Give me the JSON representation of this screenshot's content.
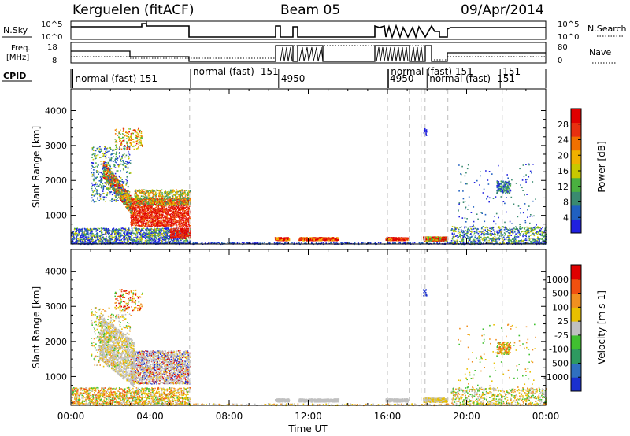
{
  "header": {
    "station": "Kerguelen (fitACF)",
    "beam": "Beam 05",
    "date": "09/Apr/2014"
  },
  "panels": {
    "nsky": {
      "label": "N.Sky",
      "left_ticks": [
        "10^5",
        "10^0"
      ],
      "right_label": "N.Search",
      "right_ticks": [
        "10^5",
        "10^0"
      ]
    },
    "freq": {
      "label_line1": "Freq.",
      "label_line2": "[MHz]",
      "left_ticks": [
        "18",
        "8"
      ],
      "right_label": "Nave",
      "right_ticks": [
        "80",
        "0"
      ]
    },
    "cpid": {
      "label": "CPID",
      "segments": [
        {
          "text": "normal (fast) 151",
          "hour": 0.1
        },
        {
          "text": "normal (fast) -151",
          "hour": 6.05
        },
        {
          "text": "4950",
          "hour": 10.5
        },
        {
          "text": "4950",
          "hour": 16.0
        },
        {
          "text": "normal (fast) 151",
          "hour": 16.05
        },
        {
          "text": "normal (fast) -151",
          "hour": 18.0
        },
        {
          "text": "151",
          "hour": 21.7
        }
      ]
    }
  },
  "chart_data": [
    {
      "type": "heatmap",
      "title": "Power",
      "xlabel": "Time UT",
      "ylabel": "Slant Range [km]",
      "x_ticks": [
        "00:00",
        "04:00",
        "08:00",
        "12:00",
        "16:00",
        "20:00",
        "00:00"
      ],
      "x_range_hours": [
        0,
        24
      ],
      "y_ticks": [
        "1000",
        "2000",
        "3000",
        "4000"
      ],
      "y_range_km": [
        180,
        4620
      ],
      "colorbar": {
        "label": "Power [dB]",
        "ticks": [
          "4",
          "8",
          "12",
          "16",
          "20",
          "24",
          "28"
        ],
        "colors": [
          "#2020e0",
          "#2060c0",
          "#3a8a70",
          "#4ab040",
          "#c8c800",
          "#f0b000",
          "#f07000",
          "#e83010",
          "#e00000"
        ]
      },
      "vertical_dashed_hours": [
        6.0,
        16.0,
        17.1,
        17.7,
        17.9,
        19.05,
        21.8
      ]
    },
    {
      "type": "heatmap",
      "title": "Velocity",
      "xlabel": "Time UT",
      "ylabel": "Slant Range [km]",
      "x_ticks": [
        "00:00",
        "04:00",
        "08:00",
        "12:00",
        "16:00",
        "20:00",
        "00:00"
      ],
      "x_range_hours": [
        0,
        24
      ],
      "y_ticks": [
        "1000",
        "2000",
        "3000",
        "4000"
      ],
      "y_range_km": [
        180,
        4620
      ],
      "colorbar": {
        "label": "Velocity [m s-1]",
        "ticks": [
          "1000",
          "500",
          "100",
          "25",
          "-25",
          "-100",
          "-500",
          "-1000"
        ],
        "colors": [
          "#1a30d0",
          "#3070c0",
          "#2e9a60",
          "#40c030",
          "#c0c0c0",
          "#e8c000",
          "#f09020",
          "#f05010",
          "#e00000"
        ]
      },
      "vertical_dashed_hours": [
        6.0,
        16.0,
        17.1,
        17.7,
        17.9,
        19.05,
        21.8
      ]
    }
  ]
}
